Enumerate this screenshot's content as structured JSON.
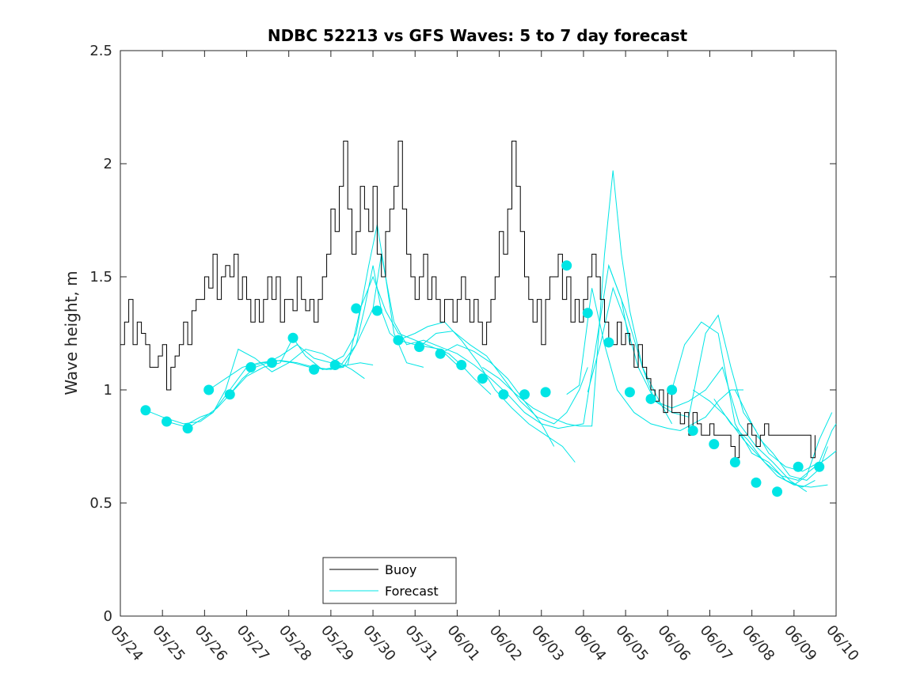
{
  "chart_data": {
    "type": "line",
    "title": "NDBC 52213 vs GFS Waves: 5 to 7 day forecast",
    "xlabel": "",
    "ylabel": "Wave height, m",
    "xlim": [
      0,
      17
    ],
    "ylim": [
      0,
      2.5
    ],
    "yticks": [
      0,
      0.5,
      1,
      1.5,
      2,
      2.5
    ],
    "ytick_labels": [
      "0",
      "0.5",
      "1",
      "1.5",
      "2",
      "2.5"
    ],
    "xtick_labels": [
      "05/24",
      "05/25",
      "05/26",
      "05/27",
      "05/28",
      "05/29",
      "05/30",
      "05/31",
      "06/01",
      "06/02",
      "06/03",
      "06/04",
      "06/05",
      "06/06",
      "06/07",
      "06/08",
      "06/09",
      "06/10"
    ],
    "grid": false,
    "legend": {
      "position": "bottom-center",
      "entries": [
        "Buoy",
        "Forecast"
      ]
    },
    "colors": {
      "buoy": "#000000",
      "forecast": "#00e5e5"
    },
    "series": [
      {
        "name": "Buoy",
        "x": [
          0,
          0.1,
          0.2,
          0.3,
          0.4,
          0.5,
          0.6,
          0.7,
          0.8,
          0.9,
          1.0,
          1.1,
          1.2,
          1.3,
          1.4,
          1.5,
          1.6,
          1.7,
          1.8,
          1.9,
          2.0,
          2.1,
          2.2,
          2.3,
          2.4,
          2.5,
          2.6,
          2.7,
          2.8,
          2.9,
          3.0,
          3.1,
          3.2,
          3.3,
          3.4,
          3.5,
          3.6,
          3.7,
          3.8,
          3.9,
          4.0,
          4.1,
          4.2,
          4.3,
          4.4,
          4.5,
          4.6,
          4.7,
          4.8,
          4.9,
          5.0,
          5.1,
          5.2,
          5.3,
          5.4,
          5.5,
          5.6,
          5.7,
          5.8,
          5.9,
          6.0,
          6.1,
          6.2,
          6.3,
          6.4,
          6.5,
          6.6,
          6.7,
          6.8,
          6.9,
          7.0,
          7.1,
          7.2,
          7.3,
          7.4,
          7.5,
          7.6,
          7.7,
          7.8,
          7.9,
          8.0,
          8.1,
          8.2,
          8.3,
          8.4,
          8.5,
          8.6,
          8.7,
          8.8,
          8.9,
          9.0,
          9.1,
          9.2,
          9.3,
          9.4,
          9.5,
          9.6,
          9.7,
          9.8,
          9.9,
          10.0,
          10.1,
          10.2,
          10.3,
          10.4,
          10.5,
          10.6,
          10.7,
          10.8,
          10.9,
          11.0,
          11.1,
          11.2,
          11.3,
          11.4,
          11.5,
          11.6,
          11.7,
          11.8,
          11.9,
          12.0,
          12.1,
          12.2,
          12.3,
          12.4,
          12.5,
          12.6,
          12.7,
          12.8,
          12.9,
          13.0,
          13.1,
          13.2,
          13.3,
          13.4,
          13.5,
          13.6,
          13.7,
          13.8,
          13.9,
          14.0,
          14.1,
          14.2,
          14.3,
          14.4,
          14.5,
          14.6,
          14.7,
          14.8,
          14.9,
          15.0,
          15.1,
          15.2,
          15.3,
          15.4,
          15.5,
          15.6,
          15.7,
          15.8,
          15.9,
          16.0,
          16.1,
          16.2,
          16.3,
          16.4,
          16.5
        ],
        "values": [
          1.2,
          1.3,
          1.4,
          1.2,
          1.3,
          1.25,
          1.2,
          1.1,
          1.1,
          1.15,
          1.2,
          1.0,
          1.1,
          1.15,
          1.2,
          1.3,
          1.2,
          1.35,
          1.4,
          1.4,
          1.5,
          1.45,
          1.6,
          1.4,
          1.5,
          1.55,
          1.5,
          1.6,
          1.4,
          1.5,
          1.4,
          1.3,
          1.4,
          1.3,
          1.4,
          1.5,
          1.4,
          1.5,
          1.3,
          1.4,
          1.4,
          1.35,
          1.5,
          1.4,
          1.35,
          1.4,
          1.3,
          1.4,
          1.5,
          1.6,
          1.8,
          1.7,
          1.9,
          2.1,
          1.8,
          1.6,
          1.7,
          1.9,
          1.8,
          1.7,
          1.9,
          1.6,
          1.5,
          1.7,
          1.8,
          1.9,
          2.1,
          1.8,
          1.6,
          1.5,
          1.4,
          1.5,
          1.6,
          1.4,
          1.5,
          1.4,
          1.3,
          1.4,
          1.4,
          1.3,
          1.4,
          1.5,
          1.4,
          1.3,
          1.4,
          1.3,
          1.2,
          1.3,
          1.4,
          1.5,
          1.7,
          1.6,
          1.8,
          2.1,
          1.9,
          1.7,
          1.5,
          1.4,
          1.3,
          1.4,
          1.2,
          1.4,
          1.5,
          1.5,
          1.6,
          1.4,
          1.5,
          1.3,
          1.4,
          1.3,
          1.4,
          1.5,
          1.6,
          1.5,
          1.4,
          1.3,
          1.2,
          1.2,
          1.3,
          1.2,
          1.25,
          1.2,
          1.1,
          1.2,
          1.1,
          1.05,
          1.0,
          0.95,
          1.0,
          0.9,
          1.0,
          0.9,
          0.9,
          0.85,
          0.9,
          0.8,
          0.9,
          0.85,
          0.8,
          0.8,
          0.85,
          0.8,
          0.8,
          0.8,
          0.8,
          0.75,
          0.7,
          0.8,
          0.8,
          0.85,
          0.8,
          0.75,
          0.8,
          0.85,
          0.8,
          0.8,
          0.8,
          0.8,
          0.8,
          0.8,
          0.8,
          0.8,
          0.8,
          0.8,
          0.7,
          0.8
        ]
      },
      {
        "name": "Forecast",
        "segments": [
          {
            "x": [
              0.6,
              1.0,
              1.5,
              1.9,
              2.2,
              2.5,
              2.8,
              3.2,
              3.6,
              4.0,
              4.4,
              4.8,
              5.2,
              5.5,
              5.8
            ],
            "values": [
              0.91,
              0.88,
              0.85,
              0.86,
              0.9,
              1.0,
              1.18,
              1.14,
              1.08,
              1.12,
              1.18,
              1.16,
              1.12,
              1.09,
              1.05
            ]
          },
          {
            "x": [
              1.1,
              1.5,
              1.9,
              2.2,
              2.6,
              3.0,
              3.4,
              3.8,
              4.2,
              4.6,
              5.0,
              5.4,
              5.7,
              6.0
            ],
            "values": [
              0.86,
              0.84,
              0.88,
              0.9,
              1.0,
              1.1,
              1.12,
              1.13,
              1.12,
              1.1,
              1.09,
              1.11,
              1.12,
              1.11
            ]
          },
          {
            "x": [
              1.6,
              2.0,
              2.3,
              2.6,
              2.9,
              3.2,
              3.5,
              3.8,
              4.2,
              4.6,
              5.0,
              5.3,
              5.6,
              5.9,
              6.1,
              6.3,
              6.5,
              6.8,
              7.2
            ],
            "values": [
              0.83,
              0.88,
              0.92,
              0.98,
              1.05,
              1.1,
              1.12,
              1.15,
              1.2,
              1.14,
              1.12,
              1.15,
              1.25,
              1.55,
              1.73,
              1.5,
              1.25,
              1.12,
              1.1
            ]
          },
          {
            "x": [
              2.1,
              2.5,
              2.9,
              3.3,
              3.7,
              4.1,
              4.5,
              4.9,
              5.3,
              5.6,
              5.8,
              6.0,
              6.2,
              6.4,
              6.6,
              7.0,
              7.3,
              7.6,
              8.0
            ],
            "values": [
              1.0,
              1.05,
              1.1,
              1.12,
              1.13,
              1.12,
              1.1,
              1.09,
              1.1,
              1.2,
              1.36,
              1.55,
              1.35,
              1.25,
              1.22,
              1.2,
              1.19,
              1.18,
              1.11
            ]
          },
          {
            "x": [
              2.6,
              3.0,
              3.4,
              3.8,
              4.1,
              4.4,
              4.8,
              5.1,
              5.4,
              5.7,
              6.0,
              6.3,
              6.6,
              7.0,
              7.4,
              7.8,
              8.1,
              8.4,
              8.8
            ],
            "values": [
              0.98,
              1.06,
              1.1,
              1.12,
              1.23,
              1.15,
              1.09,
              1.1,
              1.11,
              1.36,
              1.5,
              1.35,
              1.25,
              1.22,
              1.19,
              1.16,
              1.11,
              1.05,
              0.98
            ]
          },
          {
            "x": [
              5.2,
              5.6,
              6.0,
              6.2,
              6.5,
              6.8,
              7.2,
              7.6,
              8.0,
              8.4,
              8.8,
              9.2,
              9.6,
              10.0,
              10.3
            ],
            "values": [
              1.1,
              1.2,
              1.36,
              1.6,
              1.3,
              1.2,
              1.22,
              1.19,
              1.16,
              1.11,
              1.05,
              0.98,
              0.9,
              0.85,
              0.75
            ]
          },
          {
            "x": [
              6.6,
              7.0,
              7.3,
              7.7,
              8.1,
              8.5,
              8.9,
              9.3,
              9.7,
              10.1,
              10.5,
              10.8
            ],
            "values": [
              1.22,
              1.25,
              1.28,
              1.3,
              1.22,
              1.12,
              1.0,
              0.92,
              0.85,
              0.8,
              0.75,
              0.68
            ]
          },
          {
            "x": [
              7.1,
              7.5,
              7.9,
              8.3,
              8.7,
              9.1,
              9.5,
              9.9,
              10.3,
              10.6,
              10.9,
              11.1
            ],
            "values": [
              1.19,
              1.25,
              1.26,
              1.2,
              1.15,
              1.05,
              0.95,
              0.88,
              0.85,
              0.9,
              1.0,
              1.1
            ]
          },
          {
            "x": [
              7.6,
              8.0,
              8.4,
              8.8,
              9.2,
              9.6,
              10.0,
              10.4,
              10.7,
              11.0,
              11.3,
              11.6,
              11.9,
              12.1
            ],
            "values": [
              1.16,
              1.2,
              1.17,
              1.12,
              1.05,
              0.95,
              0.85,
              0.83,
              0.84,
              0.85,
              1.2,
              1.55,
              1.4,
              1.2
            ]
          },
          {
            "x": [
              8.6,
              9.0,
              9.4,
              9.8,
              10.2,
              10.6,
              10.9,
              11.2,
              11.5,
              11.7,
              11.9,
              12.1,
              12.4,
              12.8,
              13.1
            ],
            "values": [
              1.1,
              1.05,
              0.98,
              0.92,
              0.88,
              0.85,
              0.84,
              0.84,
              1.6,
              1.97,
              1.6,
              1.35,
              1.1,
              0.95,
              0.85
            ]
          },
          {
            "x": [
              10.6,
              10.9,
              11.2,
              11.5,
              11.8,
              12.2,
              12.6,
              13.0,
              13.3,
              13.6,
              13.9,
              14.2,
              14.5,
              14.8
            ],
            "values": [
              0.98,
              1.02,
              1.45,
              1.2,
              1.0,
              0.9,
              0.85,
              0.83,
              0.82,
              0.85,
              0.88,
              0.95,
              1.0,
              1.0
            ]
          },
          {
            "x": [
              11.1,
              11.4,
              11.7,
              12.0,
              12.3,
              12.7,
              13.1,
              13.5,
              13.9,
              14.2,
              14.5,
              14.8,
              15.1
            ],
            "values": [
              0.99,
              1.2,
              1.45,
              1.3,
              1.1,
              0.95,
              0.9,
              0.88,
              1.25,
              1.33,
              1.1,
              0.9,
              0.82
            ]
          },
          {
            "x": [
              11.6,
              12.0,
              12.4,
              12.7,
              13.1,
              13.5,
              13.9,
              14.3,
              14.7,
              15.1,
              15.5,
              15.9,
              16.3
            ],
            "values": [
              1.55,
              1.35,
              1.1,
              0.95,
              0.92,
              0.95,
              1.0,
              1.1,
              0.85,
              0.75,
              0.68,
              0.6,
              0.55
            ]
          },
          {
            "x": [
              13.1,
              13.4,
              13.8,
              14.2,
              14.6,
              15.0,
              15.4,
              15.8,
              16.2,
              16.5
            ],
            "values": [
              1.0,
              1.2,
              1.3,
              1.25,
              0.85,
              0.72,
              0.68,
              0.6,
              0.57,
              0.6
            ]
          },
          {
            "x": [
              13.6,
              14.0,
              14.4,
              14.8,
              15.2,
              15.6,
              16.0,
              16.4,
              16.8
            ],
            "values": [
              1.0,
              0.95,
              0.88,
              0.78,
              0.7,
              0.62,
              0.58,
              0.57,
              0.58
            ]
          },
          {
            "x": [
              14.1,
              14.5,
              14.9,
              15.3,
              15.7,
              16.1,
              16.5,
              16.8,
              17.0
            ],
            "values": [
              0.96,
              0.85,
              0.78,
              0.68,
              0.62,
              0.6,
              0.66,
              0.7,
              0.73
            ]
          },
          {
            "x": [
              14.6,
              15.0,
              15.4,
              15.8,
              16.2,
              16.6,
              16.9,
              17.0
            ],
            "values": [
              1.0,
              0.85,
              0.72,
              0.66,
              0.64,
              0.68,
              0.82,
              0.85
            ]
          },
          {
            "x": [
              15.1,
              15.5,
              15.9,
              16.3,
              16.6,
              16.8
            ],
            "values": [
              0.8,
              0.72,
              0.62,
              0.6,
              0.65,
              0.75
            ]
          },
          {
            "x": [
              15.6,
              16.0,
              16.3,
              16.6,
              16.9
            ],
            "values": [
              0.62,
              0.58,
              0.62,
              0.78,
              0.9
            ]
          }
        ],
        "markers": {
          "x": [
            0.6,
            1.1,
            1.6,
            2.1,
            2.6,
            3.1,
            3.6,
            4.1,
            4.6,
            5.1,
            5.6,
            6.1,
            6.6,
            7.1,
            7.6,
            8.1,
            8.6,
            9.1,
            9.6,
            10.1,
            10.6,
            11.1,
            11.6,
            12.1,
            12.6,
            13.1,
            13.6,
            14.1,
            14.6,
            15.1,
            15.6,
            16.1,
            16.6
          ],
          "values": [
            0.91,
            0.86,
            0.83,
            1.0,
            0.98,
            1.1,
            1.12,
            1.23,
            1.09,
            1.11,
            1.36,
            1.35,
            1.22,
            1.19,
            1.16,
            1.11,
            1.05,
            0.98,
            0.98,
            0.99,
            1.55,
            1.34,
            1.21,
            0.99,
            0.96,
            1.0,
            0.82,
            0.76,
            0.68,
            0.59,
            0.55,
            0.66,
            0.66
          ]
        }
      }
    ]
  }
}
